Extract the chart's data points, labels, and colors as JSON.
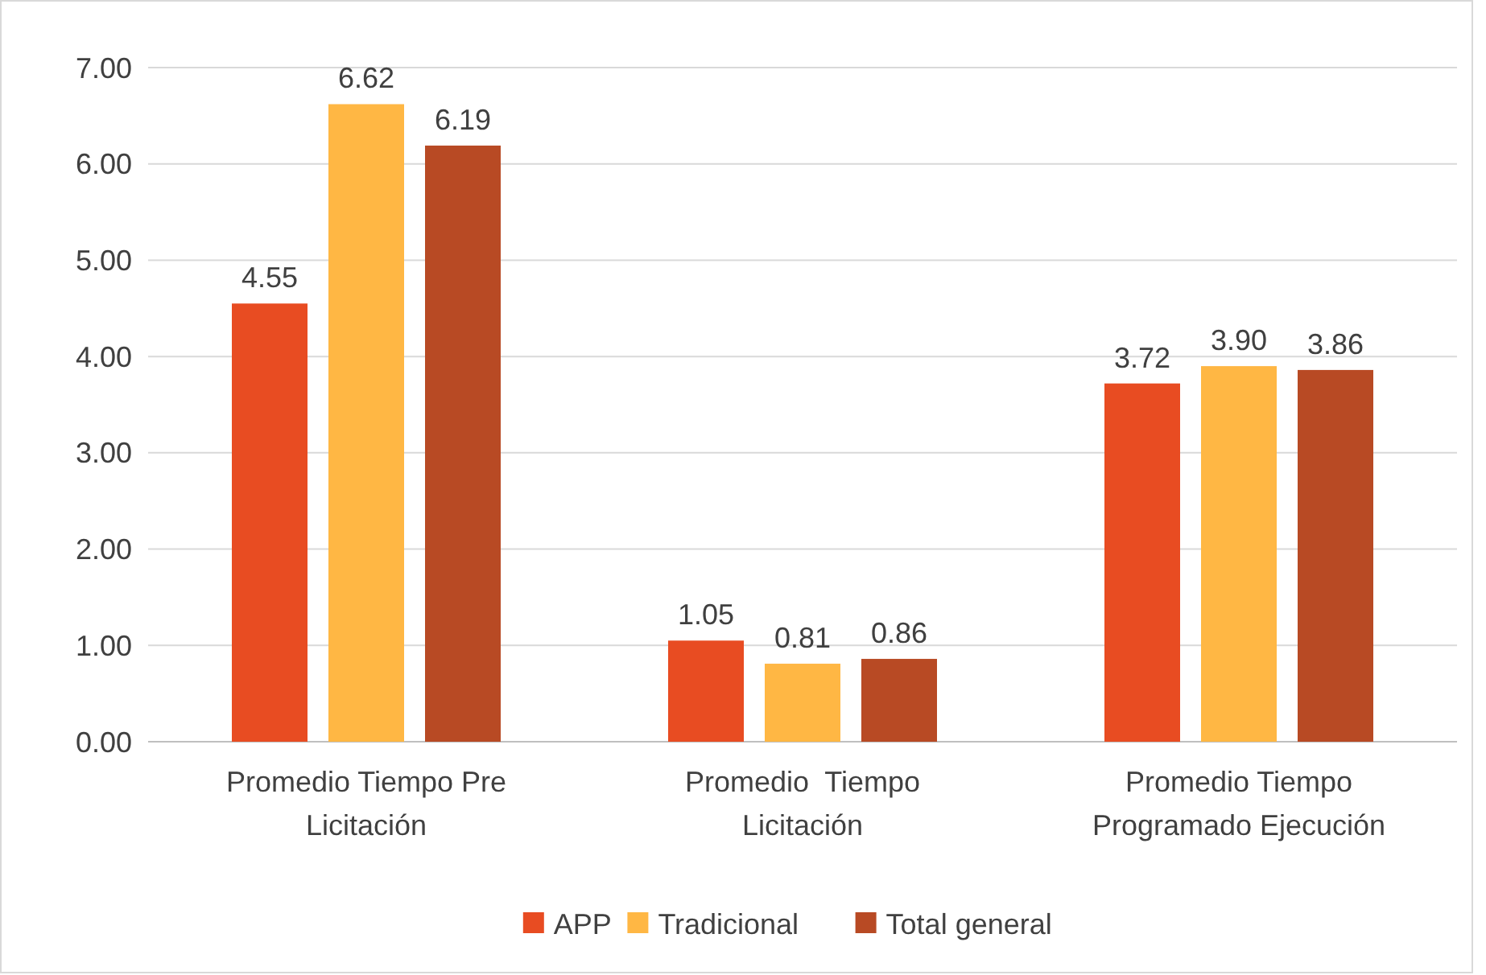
{
  "chart_data": {
    "type": "bar",
    "categories": [
      "Promedio Tiempo Pre Licitación",
      "Promedio  Tiempo Licitación",
      "Promedio Tiempo Programado Ejecución"
    ],
    "series": [
      {
        "name": "APP",
        "color": "#e84c22",
        "values": [
          4.55,
          1.05,
          3.72
        ],
        "value_labels": [
          "4.55",
          "1.05",
          "3.72"
        ]
      },
      {
        "name": "Tradicional",
        "color": "#ffb744",
        "values": [
          6.62,
          0.81,
          3.9
        ],
        "value_labels": [
          "6.62",
          "0.81",
          "3.90"
        ]
      },
      {
        "name": "Total general",
        "color": "#b84a24",
        "values": [
          6.19,
          0.86,
          3.86
        ],
        "value_labels": [
          "6.19",
          "0.86",
          "3.86"
        ]
      }
    ],
    "ylim": [
      0,
      7
    ],
    "yticks": [
      {
        "value": 0,
        "label": "0.00"
      },
      {
        "value": 1,
        "label": "1.00"
      },
      {
        "value": 2,
        "label": "2.00"
      },
      {
        "value": 3,
        "label": "3.00"
      },
      {
        "value": 4,
        "label": "4.00"
      },
      {
        "value": 5,
        "label": "5.00"
      },
      {
        "value": 6,
        "label": "6.00"
      },
      {
        "value": 7,
        "label": "7.00"
      }
    ],
    "grid": "y",
    "legend": "bottom"
  }
}
